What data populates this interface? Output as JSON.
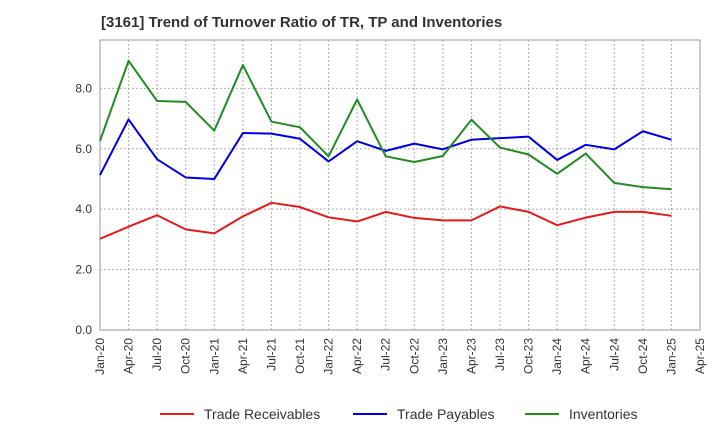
{
  "chart_data": {
    "type": "line",
    "title": "[3161]  Trend of Turnover Ratio of TR, TP and Inventories",
    "xlabel": "",
    "ylabel": "",
    "ylim": [
      0,
      9.6
    ],
    "y_ticks": [
      "0.0",
      "2.0",
      "4.0",
      "6.0",
      "8.0"
    ],
    "x_tick_labels": [
      "Jan-20",
      "Apr-20",
      "Jul-20",
      "Oct-20",
      "Jan-21",
      "Apr-21",
      "Jul-21",
      "Oct-21",
      "Jan-22",
      "Apr-22",
      "Jul-22",
      "Oct-22",
      "Jan-23",
      "Apr-23",
      "Jul-23",
      "Oct-23",
      "Jan-24",
      "Apr-24",
      "Jul-24",
      "Oct-24",
      "Jan-25",
      "Apr-25"
    ],
    "x": [
      "Jan-20",
      "Apr-20",
      "Jul-20",
      "Oct-20",
      "Jan-21",
      "Apr-21",
      "Jul-21",
      "Oct-21",
      "Jan-22",
      "Apr-22",
      "Jul-22",
      "Oct-22",
      "Jan-23",
      "Apr-23",
      "Jul-23",
      "Oct-23",
      "Jan-24",
      "Apr-24",
      "Jul-24",
      "Oct-24",
      "Jan-25"
    ],
    "grid": "dotted",
    "legend_position": "bottom",
    "series": [
      {
        "name": "Trade Receivables",
        "color": "#e31a1c",
        "values": [
          3.02,
          3.42,
          3.8,
          3.33,
          3.2,
          3.76,
          4.21,
          4.07,
          3.73,
          3.59,
          3.91,
          3.71,
          3.63,
          3.63,
          4.09,
          3.91,
          3.47,
          3.72,
          3.91,
          3.91,
          3.78
        ]
      },
      {
        "name": "Trade Payables",
        "color": "#0000e0",
        "values": [
          5.13,
          6.97,
          5.65,
          5.05,
          5.0,
          6.52,
          6.5,
          6.33,
          5.58,
          6.25,
          5.93,
          6.17,
          5.98,
          6.3,
          6.35,
          6.4,
          5.63,
          6.13,
          5.98,
          6.58,
          6.3
        ]
      },
      {
        "name": "Inventories",
        "color": "#228b22",
        "values": [
          6.26,
          8.91,
          7.58,
          7.55,
          6.6,
          8.77,
          6.9,
          6.71,
          5.75,
          7.63,
          5.75,
          5.56,
          5.76,
          6.96,
          6.04,
          5.81,
          5.17,
          5.84,
          4.87,
          4.73,
          4.66
        ]
      }
    ]
  }
}
